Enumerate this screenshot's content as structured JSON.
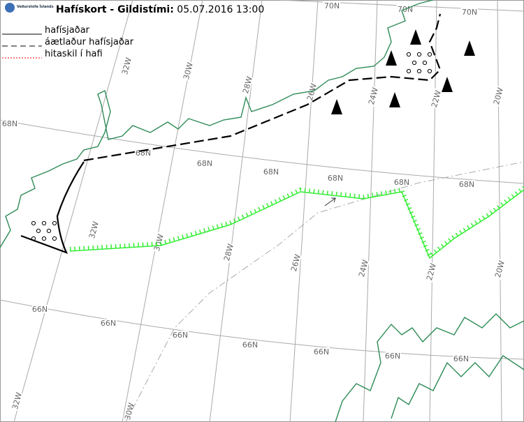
{
  "header": {
    "logo_text": "Veðurstofa Íslands",
    "title": "Hafískort - Gildistími:",
    "datetime": "05.07.2016 13:00"
  },
  "legend": [
    {
      "label": "hafísjaðar"
    },
    {
      "label": "áætlaður hafísjaðar"
    },
    {
      "label": "hitaskil í hafi"
    }
  ],
  "grid": {
    "latitudes": [
      "70N",
      "68N",
      "66N"
    ],
    "longitudes": [
      "32W",
      "30W",
      "28W",
      "26W",
      "24W",
      "22W",
      "20W"
    ]
  }
}
